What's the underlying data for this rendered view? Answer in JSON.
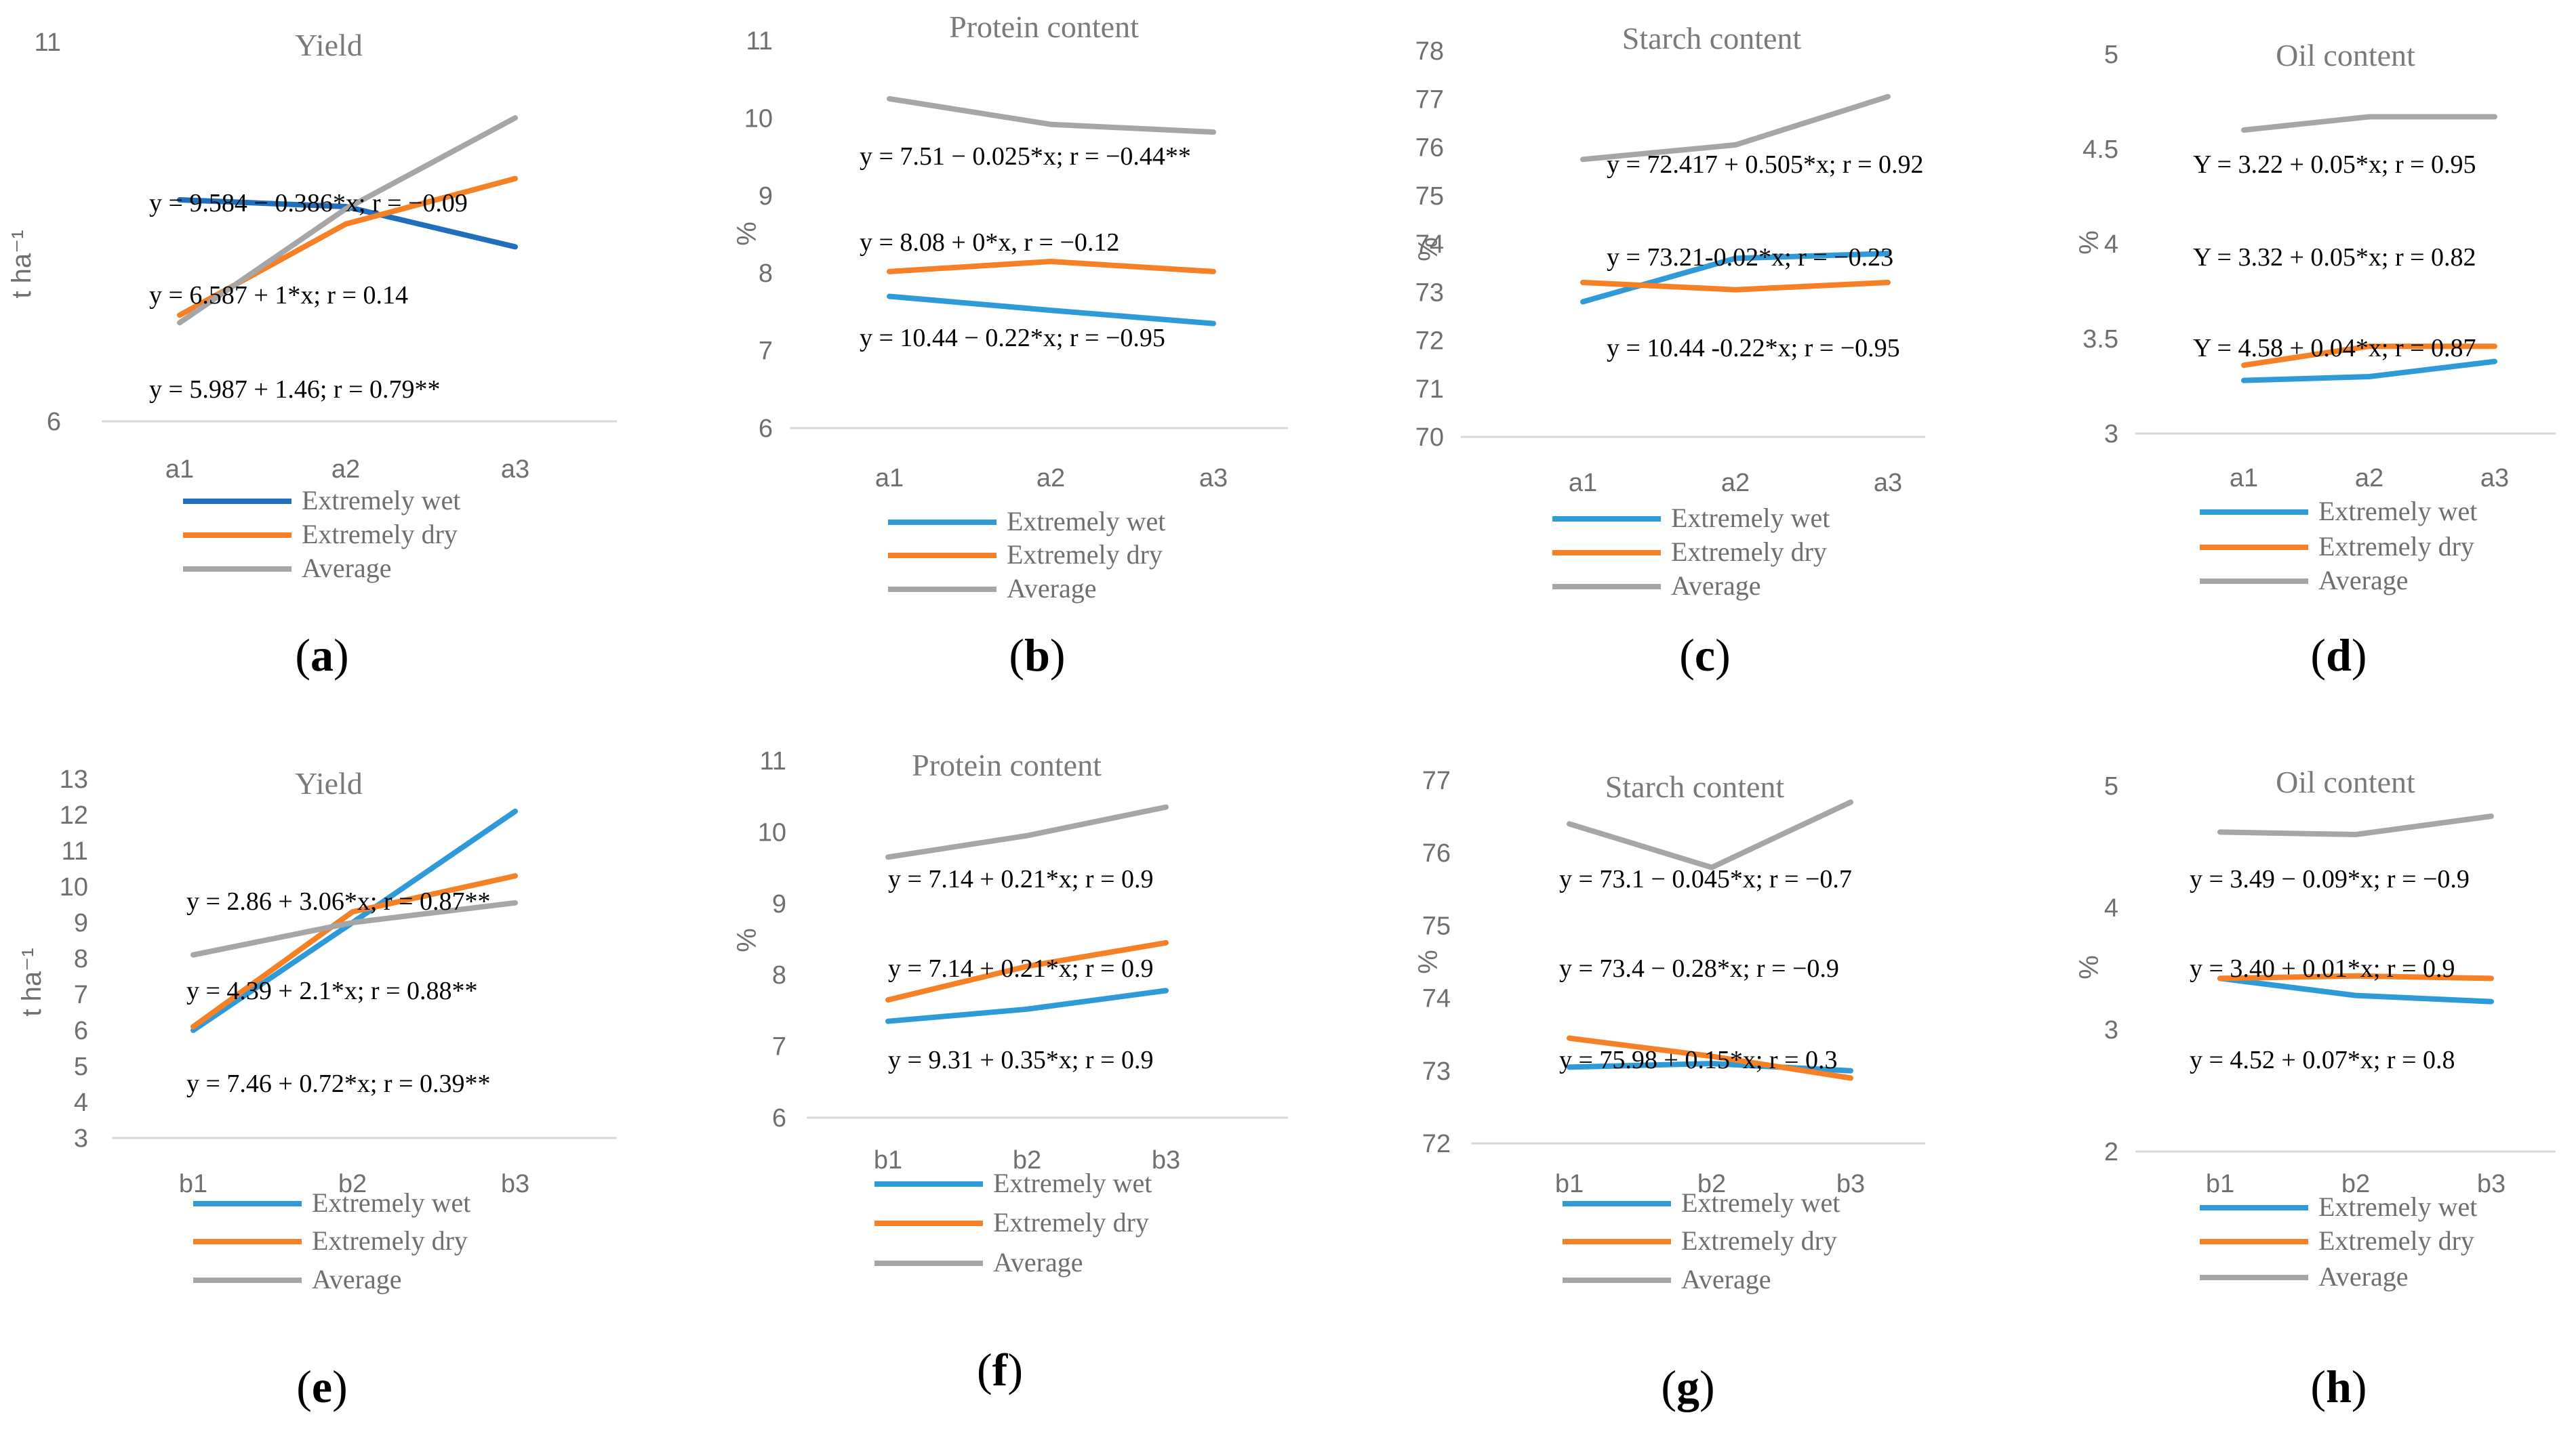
{
  "colors": {
    "wet_dark": "#1f6fbd",
    "wet": "#2e9bd8",
    "dry": "#f58025",
    "avg": "#a6a6a6",
    "axis": "#d9d9d9",
    "text": "#6f6f6f"
  },
  "chart_data": [
    {
      "type": "line",
      "panel": "(a)",
      "title": "Yield",
      "ylabel": "t ha⁻¹",
      "ylim": [
        6,
        11
      ],
      "yticks": [
        "11",
        "6"
      ],
      "categories": [
        "a1",
        "a2",
        "a3"
      ],
      "series": [
        {
          "name": "Extremely wet",
          "values": [
            8.92,
            8.83,
            8.3
          ]
        },
        {
          "name": "Extremely dry",
          "values": [
            7.4,
            8.6,
            9.2
          ]
        },
        {
          "name": "Average",
          "values": [
            7.3,
            8.8,
            10.0
          ]
        }
      ],
      "equations": [
        "y = 9.584 − 0.386*x; r = −0.09",
        "y = 6.587 + 1*x; r = 0.14",
        "y = 5.987 + 1.46; r = 0.79**"
      ]
    },
    {
      "type": "line",
      "panel": "(b)",
      "title": "Protein content",
      "ylabel": "%",
      "ylim": [
        6,
        11
      ],
      "yticks": [
        "11",
        "10",
        "9",
        "8",
        "7",
        "6"
      ],
      "categories": [
        "a1",
        "a2",
        "a3"
      ],
      "series": [
        {
          "name": "Extremely wet",
          "values": [
            7.7,
            7.52,
            7.35
          ]
        },
        {
          "name": "Extremely dry",
          "values": [
            8.02,
            8.15,
            8.02
          ]
        },
        {
          "name": "Average",
          "values": [
            10.25,
            9.92,
            9.82
          ]
        }
      ],
      "equations": [
        "y = 7.51 − 0.025*x; r = −0.44**",
        "y = 8.08 + 0*x, r = −0.12",
        "y = 10.44 − 0.22*x; r = −0.95"
      ]
    },
    {
      "type": "line",
      "panel": "(c)",
      "title": "Starch content",
      "ylabel": "%",
      "ylim": [
        70,
        78
      ],
      "yticks": [
        "78",
        "77",
        "76",
        "75",
        "74",
        "73",
        "72",
        "71",
        "70"
      ],
      "categories": [
        "a1",
        "a2",
        "a3"
      ],
      "series": [
        {
          "name": "Extremely wet",
          "values": [
            72.8,
            73.7,
            73.8
          ]
        },
        {
          "name": "Extremely dry",
          "values": [
            73.2,
            73.05,
            73.2
          ]
        },
        {
          "name": "Average",
          "values": [
            75.75,
            76.05,
            77.05
          ]
        }
      ],
      "equations": [
        "y = 72.417 + 0.505*x; r = 0.92",
        "y = 73.21-0.02*x; r = −0.23",
        "y = 10.44 -0.22*x; r = −0.95"
      ]
    },
    {
      "type": "line",
      "panel": "(d)",
      "title": "Oil content",
      "ylabel": "%",
      "ylim": [
        3,
        5
      ],
      "yticks": [
        "5",
        "4.5",
        "4",
        "3.5",
        "3"
      ],
      "categories": [
        "a1",
        "a2",
        "a3"
      ],
      "series": [
        {
          "name": "Extremely wet",
          "values": [
            3.28,
            3.3,
            3.38
          ]
        },
        {
          "name": "Extremely dry",
          "values": [
            3.36,
            3.46,
            3.46
          ]
        },
        {
          "name": "Average",
          "values": [
            4.6,
            4.67,
            4.67
          ]
        }
      ],
      "equations": [
        "Y = 3.22 + 0.05*x; r = 0.95",
        "Y = 3.32 + 0.05*x; r = 0.82",
        "Y = 4.58 + 0.04*x; r = 0.87"
      ]
    },
    {
      "type": "line",
      "panel": "(e)",
      "title": "Yield",
      "ylabel": "t ha⁻¹",
      "ylim": [
        3,
        13
      ],
      "yticks": [
        "13",
        "12",
        "11",
        "10",
        "9",
        "8",
        "7",
        "6",
        "5",
        "4",
        "3"
      ],
      "categories": [
        "b1",
        "b2",
        "b3"
      ],
      "series": [
        {
          "name": "Extremely wet",
          "values": [
            6.0,
            9.0,
            12.1
          ]
        },
        {
          "name": "Extremely dry",
          "values": [
            6.1,
            9.3,
            10.3
          ]
        },
        {
          "name": "Average",
          "values": [
            8.1,
            9.0,
            9.55
          ]
        }
      ],
      "equations": [
        "y = 2.86 + 3.06*x; r = 0.87**",
        "y = 4.39 + 2.1*x; r = 0.88**",
        "y = 7.46 + 0.72*x; r = 0.39**"
      ]
    },
    {
      "type": "line",
      "panel": "(f)",
      "title": "Protein content",
      "ylabel": "%",
      "ylim": [
        6,
        11
      ],
      "yticks": [
        "11",
        "10",
        "9",
        "8",
        "7",
        "6"
      ],
      "categories": [
        "b1",
        "b2",
        "b3"
      ],
      "series": [
        {
          "name": "Extremely wet",
          "values": [
            7.35,
            7.52,
            7.78
          ]
        },
        {
          "name": "Extremely dry",
          "values": [
            7.65,
            8.12,
            8.45
          ]
        },
        {
          "name": "Average",
          "values": [
            9.65,
            9.95,
            10.35
          ]
        }
      ],
      "equations": [
        "y = 7.14 + 0.21*x; r = 0.9",
        "y = 7.14 + 0.21*x; r = 0.9",
        "y = 9.31 + 0.35*x; r = 0.9"
      ]
    },
    {
      "type": "line",
      "panel": "(g)",
      "title": "Starch content",
      "ylabel": "%",
      "ylim": [
        72,
        77
      ],
      "yticks": [
        "77",
        "76",
        "75",
        "74",
        "73",
        "72"
      ],
      "categories": [
        "b1",
        "b2",
        "b3"
      ],
      "series": [
        {
          "name": "Extremely wet",
          "values": [
            73.05,
            73.1,
            73.0
          ]
        },
        {
          "name": "Extremely dry",
          "values": [
            73.45,
            73.2,
            72.9
          ]
        },
        {
          "name": "Average",
          "values": [
            76.4,
            75.8,
            76.7
          ]
        }
      ],
      "equations": [
        "y = 73.1 − 0.045*x; r = −0.7",
        "y = 73.4 − 0.28*x; r = −0.9",
        "y = 75.98 + 0.15*x; r = 0.3"
      ]
    },
    {
      "type": "line",
      "panel": "(h)",
      "title": "Oil content",
      "ylabel": "%",
      "ylim": [
        2,
        5
      ],
      "yticks": [
        "5",
        "4",
        "3",
        "2"
      ],
      "categories": [
        "b1",
        "b2",
        "b3"
      ],
      "series": [
        {
          "name": "Extremely wet",
          "values": [
            3.42,
            3.28,
            3.23
          ]
        },
        {
          "name": "Extremely dry",
          "values": [
            3.42,
            3.44,
            3.42
          ]
        },
        {
          "name": "Average",
          "values": [
            4.62,
            4.6,
            4.75
          ]
        }
      ],
      "equations": [
        "y = 3.49 − 0.09*x; r = −0.9",
        "y = 3.40 + 0.01*x; r = 0.9",
        "y = 4.52 + 0.07*x; r = 0.8"
      ]
    }
  ]
}
